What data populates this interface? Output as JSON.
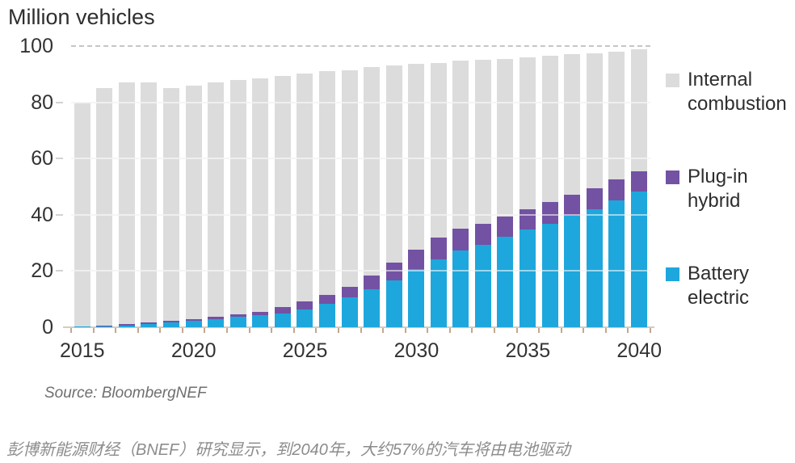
{
  "title": "Million vehicles",
  "source": "Source: BloombergNEF",
  "caption": "彭博新能源财经（BNEF）研究显示，到2040年，大约57%的汽车将由电池驱动",
  "colors": {
    "internal_combustion": "#dcdcdc",
    "plug_in_hybrid": "#7352a3",
    "battery_electric": "#1ea7dc",
    "axis_line": "#d4ccc1",
    "x_tick": "#c2a88e",
    "grid": "#e9e9e9",
    "text": "#2e2e2e",
    "source_text": "#6f6f6f",
    "caption_text": "#8c8c8c"
  },
  "legend": {
    "items": [
      {
        "label": "Internal combustion"
      },
      {
        "label": "Plug-in hybrid"
      },
      {
        "label": "Battery electric"
      }
    ]
  },
  "chart_data": {
    "type": "bar",
    "stacked": true,
    "title": "Million vehicles",
    "ylabel": "Million vehicles",
    "xlabel": "",
    "ylim": [
      0,
      100
    ],
    "yticks": [
      100,
      80,
      60,
      40,
      20,
      0
    ],
    "grid": "horizontal",
    "legend_position": "right",
    "years": [
      2015,
      2016,
      2017,
      2018,
      2019,
      2020,
      2021,
      2022,
      2023,
      2024,
      2025,
      2026,
      2027,
      2028,
      2029,
      2030,
      2031,
      2032,
      2033,
      2034,
      2035,
      2036,
      2037,
      2038,
      2039,
      2040
    ],
    "x_tick_positions": [
      0,
      5,
      10,
      15,
      20,
      25
    ],
    "x_tick_labels": [
      "2015",
      "2020",
      "2025",
      "2030",
      "2035",
      "2040"
    ],
    "series": [
      {
        "name": "Internal combustion",
        "color": "#dcdcdc",
        "values": [
          79.7,
          84.3,
          85.9,
          85.3,
          82.8,
          83.2,
          83.3,
          83.4,
          83.1,
          82.2,
          81.2,
          79.4,
          77.0,
          74.0,
          70.0,
          66.1,
          62.2,
          59.8,
          58.2,
          56.0,
          54.1,
          52.0,
          49.8,
          48.0,
          45.4,
          43.2
        ]
      },
      {
        "name": "Plug-in hybrid",
        "color": "#7352a3",
        "values": [
          0.1,
          0.3,
          0.4,
          0.5,
          0.5,
          0.6,
          0.7,
          0.8,
          1.2,
          2.3,
          2.9,
          3.2,
          4.0,
          5.0,
          6.3,
          6.8,
          7.7,
          7.7,
          7.5,
          7.2,
          7.2,
          7.6,
          7.6,
          7.5,
          7.7,
          7.2
        ]
      },
      {
        "name": "Battery electric",
        "color": "#1ea7dc",
        "values": [
          0.2,
          0.4,
          0.7,
          1.2,
          1.7,
          2.2,
          3.0,
          3.8,
          4.2,
          5.0,
          6.2,
          8.4,
          10.5,
          13.5,
          16.8,
          20.7,
          24.2,
          27.3,
          29.4,
          32.3,
          34.7,
          36.9,
          39.6,
          42.0,
          45.0,
          48.4
        ]
      }
    ]
  }
}
